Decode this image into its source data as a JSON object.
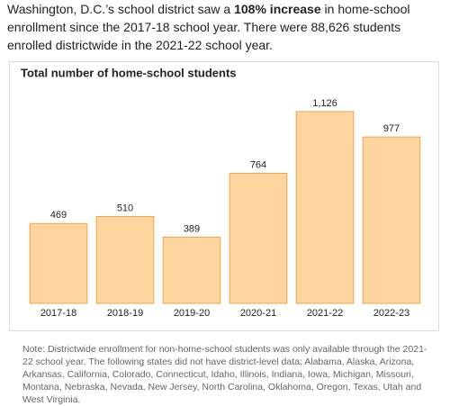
{
  "intro": [
    "Washington, D.C.’s school district saw a ",
    "108% increase",
    " in home-school enrollment since the 2017-18 school year. There were 88,626 students enrolled districtwide in the 2021-22 school year."
  ],
  "chart_data": {
    "type": "bar",
    "title": "Total number of home-school students",
    "categories": [
      "2017-18",
      "2018-19",
      "2019-20",
      "2020-21",
      "2021-22",
      "2022-23"
    ],
    "values": [
      469,
      510,
      389,
      764,
      1126,
      977
    ],
    "value_labels": [
      "469",
      "510",
      "389",
      "764",
      "1,126",
      "977"
    ],
    "color": "#fdd59d",
    "edge_color": "#e8a852"
  },
  "note": "Note: Districtwide enrollment for non-home-school students was only available through the 2021-22 school year. The following states did not have district-level data: Alabama, Alaska, Arizona, Arkansas, California, Colorado, Connecticut, Idaho, Illinois, Indiana, Iowa, Michigan, Missouri, Montana, Nebraska, Nevada, New Jersey, North Carolina, Oklahoma, Oregon, Texas, Utah and West Virginia."
}
